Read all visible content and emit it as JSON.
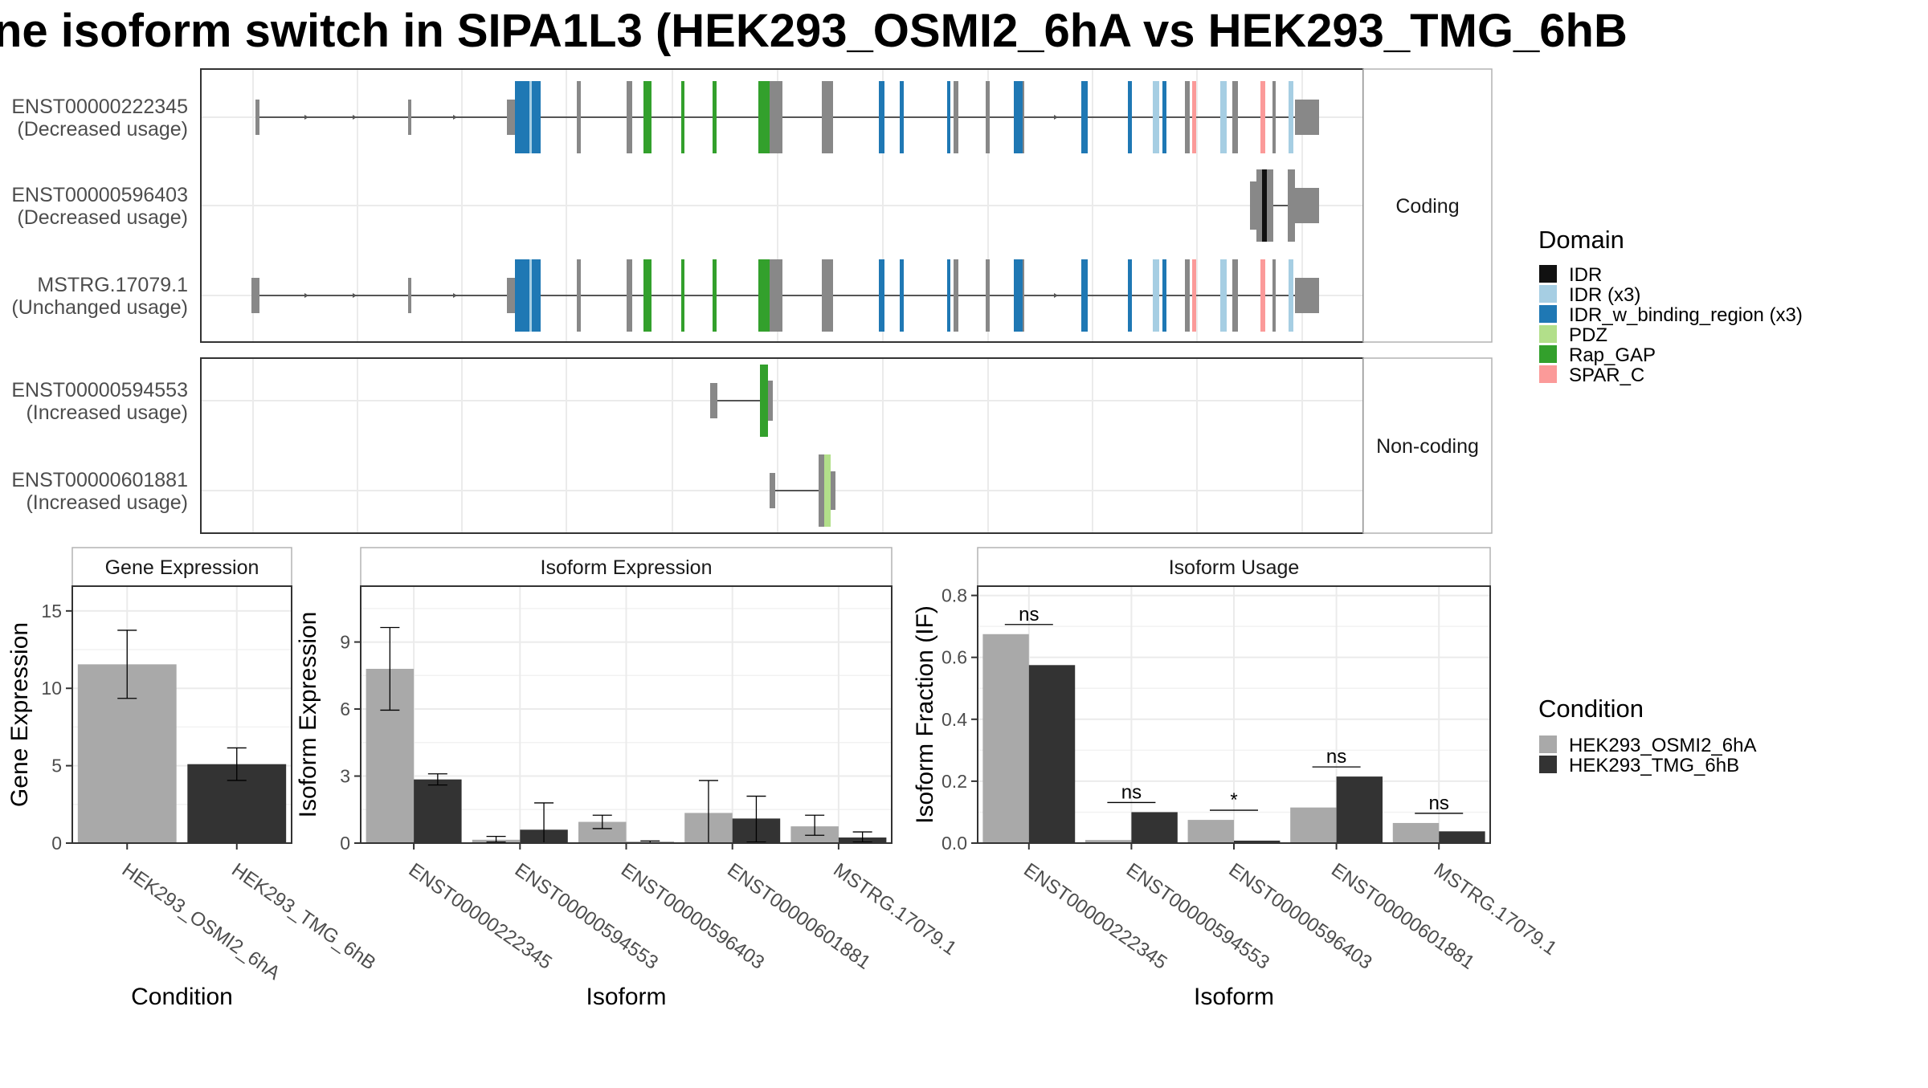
{
  "title": "ne isoform switch in SIPA1L3 (HEK293_OSMI2_6hA vs HEK293_TMG_6hB",
  "colors": {
    "intron": "#555555",
    "exon": "#888888",
    "cond_a": "#A9A9A9",
    "cond_b": "#333333",
    "grid": "#EBEBEB",
    "panel_border": "#333333",
    "strip_border": "#B3B3B3"
  },
  "structure": {
    "panels": [
      {
        "facet_label": "Coding",
        "rows": [
          {
            "name": "ENST00000222345",
            "usage": "(Decreased usage)",
            "type": "long"
          },
          {
            "name": "ENST00000596403",
            "usage": "(Decreased usage)",
            "type": "596403"
          },
          {
            "name": "MSTRG.17079.1",
            "usage": "(Unchanged usage)",
            "type": "long"
          }
        ]
      },
      {
        "facet_label": "Non-coding",
        "rows": [
          {
            "name": "ENST00000594553",
            "usage": "(Increased usage)",
            "type": "594553"
          },
          {
            "name": "ENST00000601881",
            "usage": "(Increased usage)",
            "type": "601881"
          }
        ]
      }
    ]
  },
  "legend_domain": {
    "title": "Domain",
    "items": [
      {
        "label": "IDR",
        "color": "#111111"
      },
      {
        "label": "IDR (x3)",
        "color": "#A6CEE3"
      },
      {
        "label": "IDR_w_binding_region (x3)",
        "color": "#1F78B4"
      },
      {
        "label": "PDZ",
        "color": "#B2DF8A"
      },
      {
        "label": "Rap_GAP",
        "color": "#33A02C"
      },
      {
        "label": "SPAR_C",
        "color": "#FB9A99"
      }
    ]
  },
  "legend_condition": {
    "title": "Condition",
    "items": [
      {
        "label": "HEK293_OSMI2_6hA",
        "color": "#A9A9A9"
      },
      {
        "label": "HEK293_TMG_6hB",
        "color": "#333333"
      }
    ]
  },
  "chart_data": [
    {
      "type": "bar",
      "title": "Gene Expression",
      "xlabel": "Condition",
      "ylabel": "Gene Expression",
      "ylim": [
        0,
        16.6
      ],
      "yticks": [
        0,
        5,
        10,
        15
      ],
      "categories": [
        "HEK293_OSMI2_6hA",
        "HEK293_TMG_6hB"
      ],
      "values": [
        11.55,
        5.1
      ],
      "error": [
        [
          9.35,
          13.75
        ],
        [
          4.05,
          6.15
        ]
      ]
    },
    {
      "type": "bar",
      "title": "Isoform Expression",
      "xlabel": "Isoform",
      "ylabel": "Isoform Expression",
      "ylim": [
        0,
        11.5
      ],
      "yticks": [
        0,
        3,
        6,
        9
      ],
      "categories": [
        "ENST00000222345",
        "ENST00000594553",
        "ENST00000596403",
        "ENST00000601881",
        "MSTRG.17079.1"
      ],
      "series": [
        {
          "name": "HEK293_OSMI2_6hA",
          "values": [
            7.8,
            0.15,
            0.95,
            1.35,
            0.75
          ],
          "error": [
            [
              5.95,
              9.65
            ],
            [
              0.05,
              0.3
            ],
            [
              0.65,
              1.25
            ],
            [
              0.0,
              2.8
            ],
            [
              0.35,
              1.25
            ]
          ]
        },
        {
          "name": "HEK293_TMG_6hB",
          "values": [
            2.85,
            0.6,
            0.05,
            1.1,
            0.25
          ],
          "error": [
            [
              2.6,
              3.1
            ],
            [
              0.0,
              1.8
            ],
            [
              0.0,
              0.1
            ],
            [
              0.05,
              2.1
            ],
            [
              0.05,
              0.5
            ]
          ]
        }
      ]
    },
    {
      "type": "bar",
      "title": "Isoform Usage",
      "xlabel": "Isoform",
      "ylabel": "Isoform Fraction (IF)",
      "ylim": [
        0,
        0.83
      ],
      "yticks": [
        "0.0",
        "0.2",
        "0.4",
        "0.6",
        "0.8"
      ],
      "categories": [
        "ENST00000222345",
        "ENST00000594553",
        "ENST00000596403",
        "ENST00000601881",
        "MSTRG.17079.1"
      ],
      "series": [
        {
          "name": "HEK293_OSMI2_6hA",
          "values": [
            0.675,
            0.01,
            0.075,
            0.115,
            0.065
          ]
        },
        {
          "name": "HEK293_TMG_6hB",
          "values": [
            0.575,
            0.1,
            0.008,
            0.215,
            0.038
          ]
        }
      ],
      "significance": [
        "ns",
        "ns",
        "*",
        "ns",
        "ns"
      ]
    }
  ]
}
